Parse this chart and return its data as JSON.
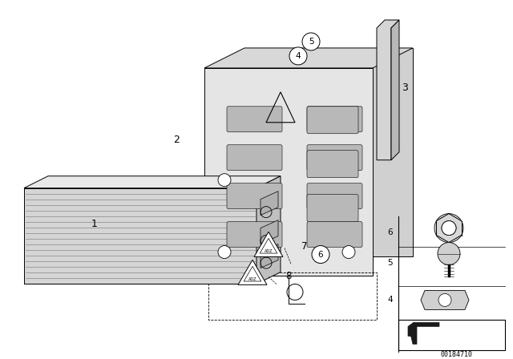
{
  "bg_color": "#ffffff",
  "line_color": "#000000",
  "fig_width": 6.4,
  "fig_height": 4.48,
  "dpi": 100,
  "catalog_num": "00184710"
}
